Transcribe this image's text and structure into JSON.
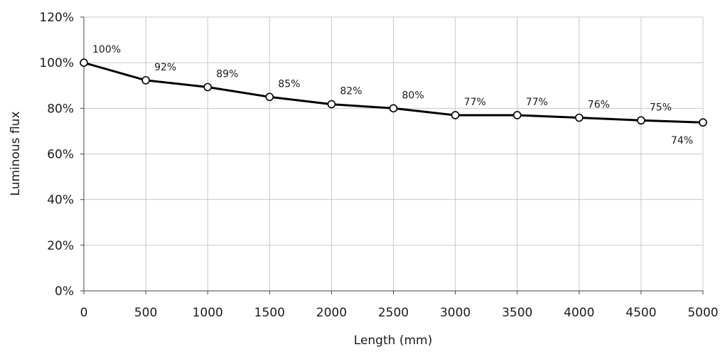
{
  "chart_data": {
    "type": "line",
    "title": "",
    "xlabel": "Length (mm)",
    "ylabel": "Luminous flux",
    "xlim": [
      0,
      5000
    ],
    "ylim": [
      0,
      120
    ],
    "x_ticks": [
      0,
      500,
      1000,
      1500,
      2000,
      2500,
      3000,
      3500,
      4000,
      4500,
      5000
    ],
    "x_tick_labels": [
      "0",
      "500",
      "1000",
      "1500",
      "2000",
      "2500",
      "3000",
      "3500",
      "4000",
      "4500",
      "5000"
    ],
    "y_ticks": [
      0,
      20,
      40,
      60,
      80,
      100,
      120
    ],
    "y_tick_labels": [
      "0%",
      "20%",
      "40%",
      "60%",
      "80%",
      "100%",
      "120%"
    ],
    "grid": true,
    "legend": "none",
    "series": [
      {
        "x": [
          0,
          500,
          1000,
          1500,
          2000,
          2500,
          3000,
          3500,
          4000,
          4500,
          5000
        ],
        "values": [
          100,
          92.3,
          89.3,
          85,
          81.8,
          80,
          77,
          77,
          75.9,
          74.7,
          73.8
        ],
        "data_labels": [
          "100%",
          "92%",
          "89%",
          "85%",
          "82%",
          "80%",
          "77%",
          "77%",
          "76%",
          "75%",
          "74%"
        ],
        "color": "#000000",
        "marker": "open-circle"
      }
    ]
  }
}
